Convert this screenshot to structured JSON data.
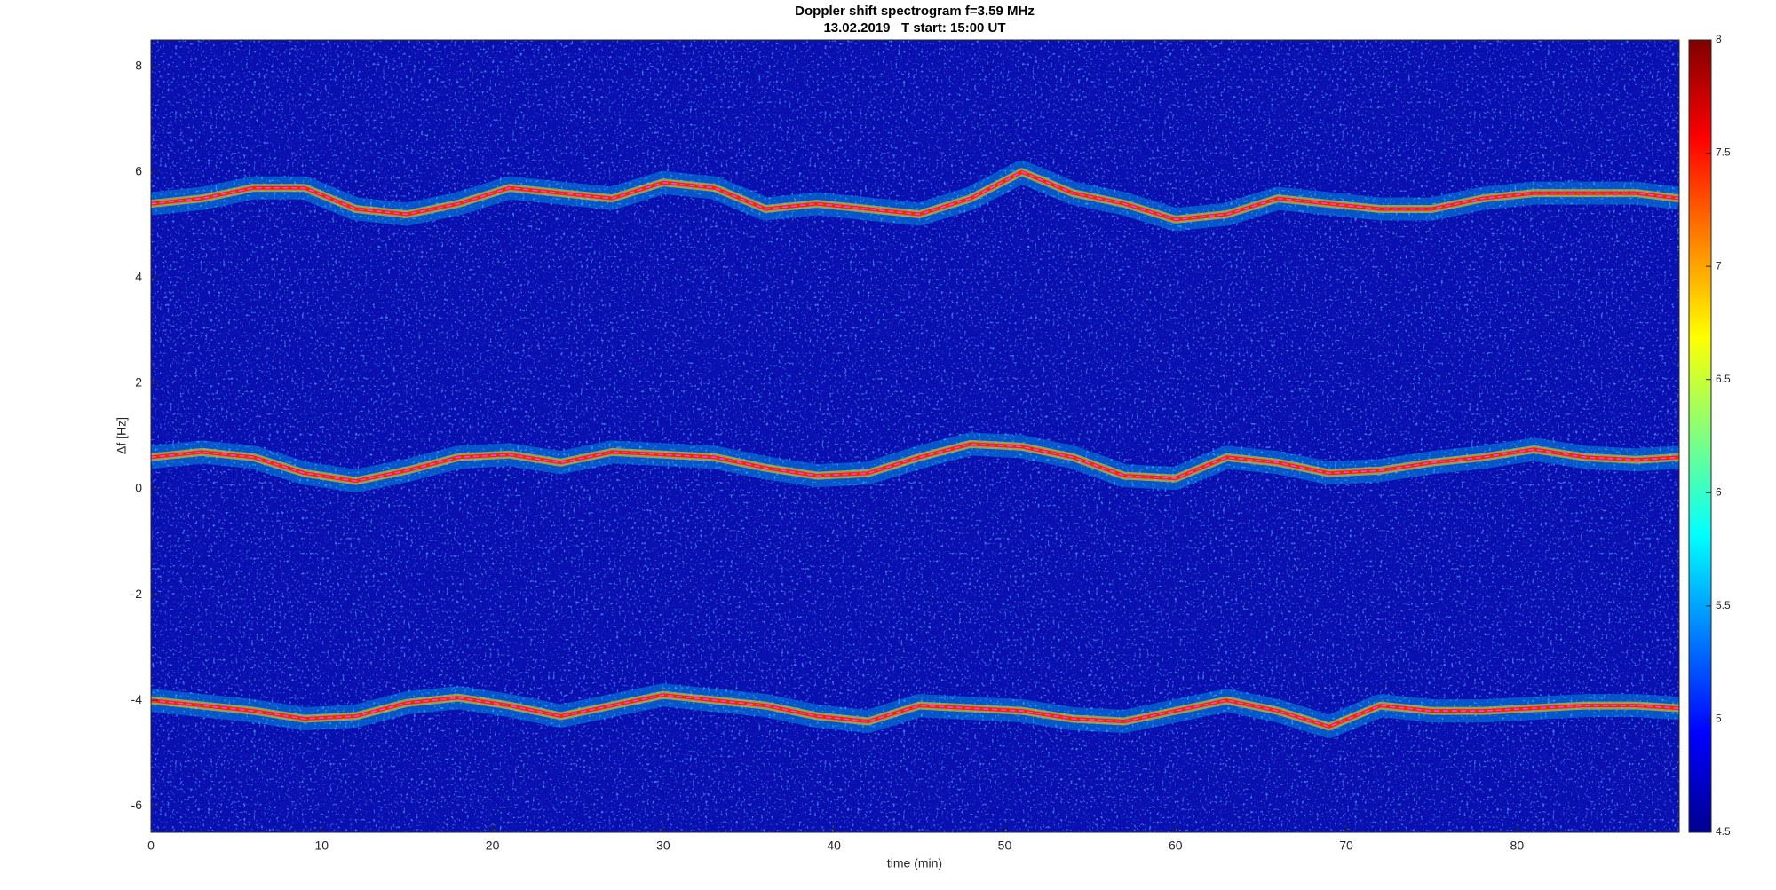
{
  "chart_data": {
    "type": "spectrogram",
    "title": "Doppler shift spectrogram f=3.59 MHz",
    "subtitle": "13.02.2019   T start: 15:00 UT",
    "x_label": "time (min)",
    "y_label": "Δf [Hz]",
    "xlim": [
      0,
      89.5
    ],
    "ylim": [
      -6.5,
      8.5
    ],
    "xticks": [
      0,
      10,
      20,
      30,
      40,
      50,
      60,
      70,
      80
    ],
    "yticks": [
      -6,
      -4,
      -2,
      0,
      2,
      4,
      6,
      8
    ],
    "clim": [
      4.5,
      8
    ],
    "cticks": [
      4.5,
      5,
      5.5,
      6,
      6.5,
      7,
      7.5,
      8
    ],
    "colormap": "jet",
    "x": [
      0,
      3,
      6,
      9,
      12,
      15,
      18,
      21,
      24,
      27,
      30,
      33,
      36,
      39,
      42,
      45,
      48,
      51,
      54,
      57,
      60,
      63,
      66,
      69,
      72,
      75,
      78,
      81,
      84,
      87,
      89.5
    ],
    "series": [
      {
        "color": "#ff2000",
        "values": [
          5.4,
          5.5,
          5.7,
          5.7,
          5.3,
          5.2,
          5.4,
          5.7,
          5.6,
          5.5,
          5.8,
          5.7,
          5.3,
          5.4,
          5.3,
          5.2,
          5.5,
          6.0,
          5.6,
          5.4,
          5.1,
          5.2,
          5.5,
          5.4,
          5.3,
          5.3,
          5.5,
          5.6,
          5.6,
          5.6,
          5.5
        ]
      },
      {
        "color": "#ff2000",
        "values": [
          0.6,
          0.7,
          0.6,
          0.3,
          0.15,
          0.35,
          0.6,
          0.65,
          0.5,
          0.7,
          0.65,
          0.6,
          0.4,
          0.25,
          0.3,
          0.6,
          0.85,
          0.8,
          0.6,
          0.25,
          0.2,
          0.6,
          0.5,
          0.3,
          0.35,
          0.5,
          0.6,
          0.75,
          0.6,
          0.55,
          0.6
        ]
      },
      {
        "color": "#ff2000",
        "values": [
          -4.0,
          -4.1,
          -4.2,
          -4.35,
          -4.3,
          -4.05,
          -3.95,
          -4.1,
          -4.3,
          -4.1,
          -3.9,
          -4.0,
          -4.1,
          -4.3,
          -4.4,
          -4.1,
          -4.15,
          -4.2,
          -4.35,
          -4.4,
          -4.2,
          -4.0,
          -4.2,
          -4.5,
          -4.1,
          -4.2,
          -4.2,
          -4.15,
          -4.1,
          -4.1,
          -4.15
        ]
      }
    ]
  }
}
